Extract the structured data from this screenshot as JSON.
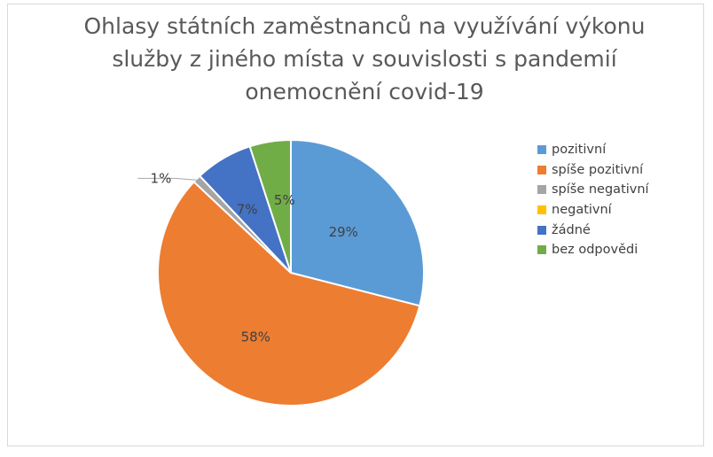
{
  "title_lines": [
    "Ohlasy státních zaměstnanců na využívání výkonu",
    "služby z jiného místa v souvislosti s pandemií",
    "onemocnění covid-19"
  ],
  "chart_data": {
    "type": "pie",
    "title": "Ohlasy státních zaměstnanců na využívání výkonu služby z jiného místa v souvislosti s pandemií onemocnění covid-19",
    "categories": [
      "pozitivní",
      "spíše pozitivní",
      "spíše negativní",
      "negativní",
      "žádné",
      "bez odpovědi"
    ],
    "values": [
      29,
      58,
      1,
      0,
      7,
      5
    ],
    "labels": [
      "29%",
      "58%",
      "1%",
      "",
      "7%",
      "5%"
    ],
    "colors": [
      "#5b9bd5",
      "#ed7d31",
      "#a5a5a5",
      "#ffc000",
      "#4472c4",
      "#70ad47"
    ],
    "legend_position": "right"
  }
}
